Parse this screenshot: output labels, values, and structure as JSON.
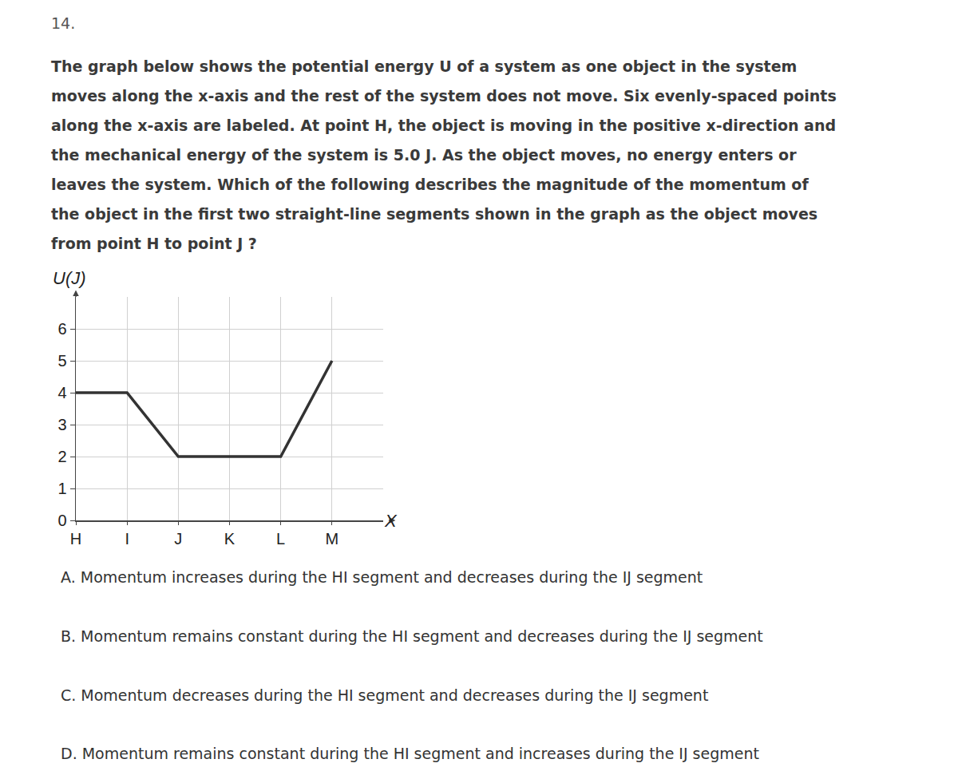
{
  "header": {
    "number": "14."
  },
  "question": {
    "lines": [
      "The graph below shows the potential energy U of a system as one object in the system",
      "moves along the x-axis and the rest of the system does not move. Six evenly-spaced points",
      "along the x-axis are labeled. At point H, the object is moving in the positive x-direction and",
      "the mechanical energy of the system is 5.0 J. As the object moves, no energy enters or",
      "leaves the system. Which of the following describes the magnitude of the momentum of",
      "the object in the first two straight-line segments shown in the graph as the object moves",
      "from point H to point J ?"
    ]
  },
  "chart_data": {
    "type": "line",
    "y_label": "U(J)",
    "x_label": "X",
    "x": [
      0,
      1,
      2,
      3,
      4,
      5
    ],
    "values": [
      4,
      4,
      2,
      2,
      2,
      5
    ],
    "color": "#333333",
    "xlim": [
      0,
      6
    ],
    "ylim": [
      0,
      7
    ],
    "xticks": [
      {
        "value": 0,
        "label": "H"
      },
      {
        "value": 1,
        "label": "I"
      },
      {
        "value": 2,
        "label": "J"
      },
      {
        "value": 3,
        "label": "K"
      },
      {
        "value": 4,
        "label": "L"
      },
      {
        "value": 5,
        "label": "M"
      }
    ],
    "yticks": [
      0,
      1,
      2,
      3,
      4,
      5,
      6
    ],
    "grid": true
  },
  "options": [
    "A. Momentum increases during the HI segment and decreases during the IJ segment",
    "B. Momentum remains constant during the HI segment and decreases during the IJ segment",
    "C. Momentum decreases during the HI segment and decreases during the IJ segment",
    "D. Momentum remains constant during the HI segment and increases during the IJ segment"
  ]
}
